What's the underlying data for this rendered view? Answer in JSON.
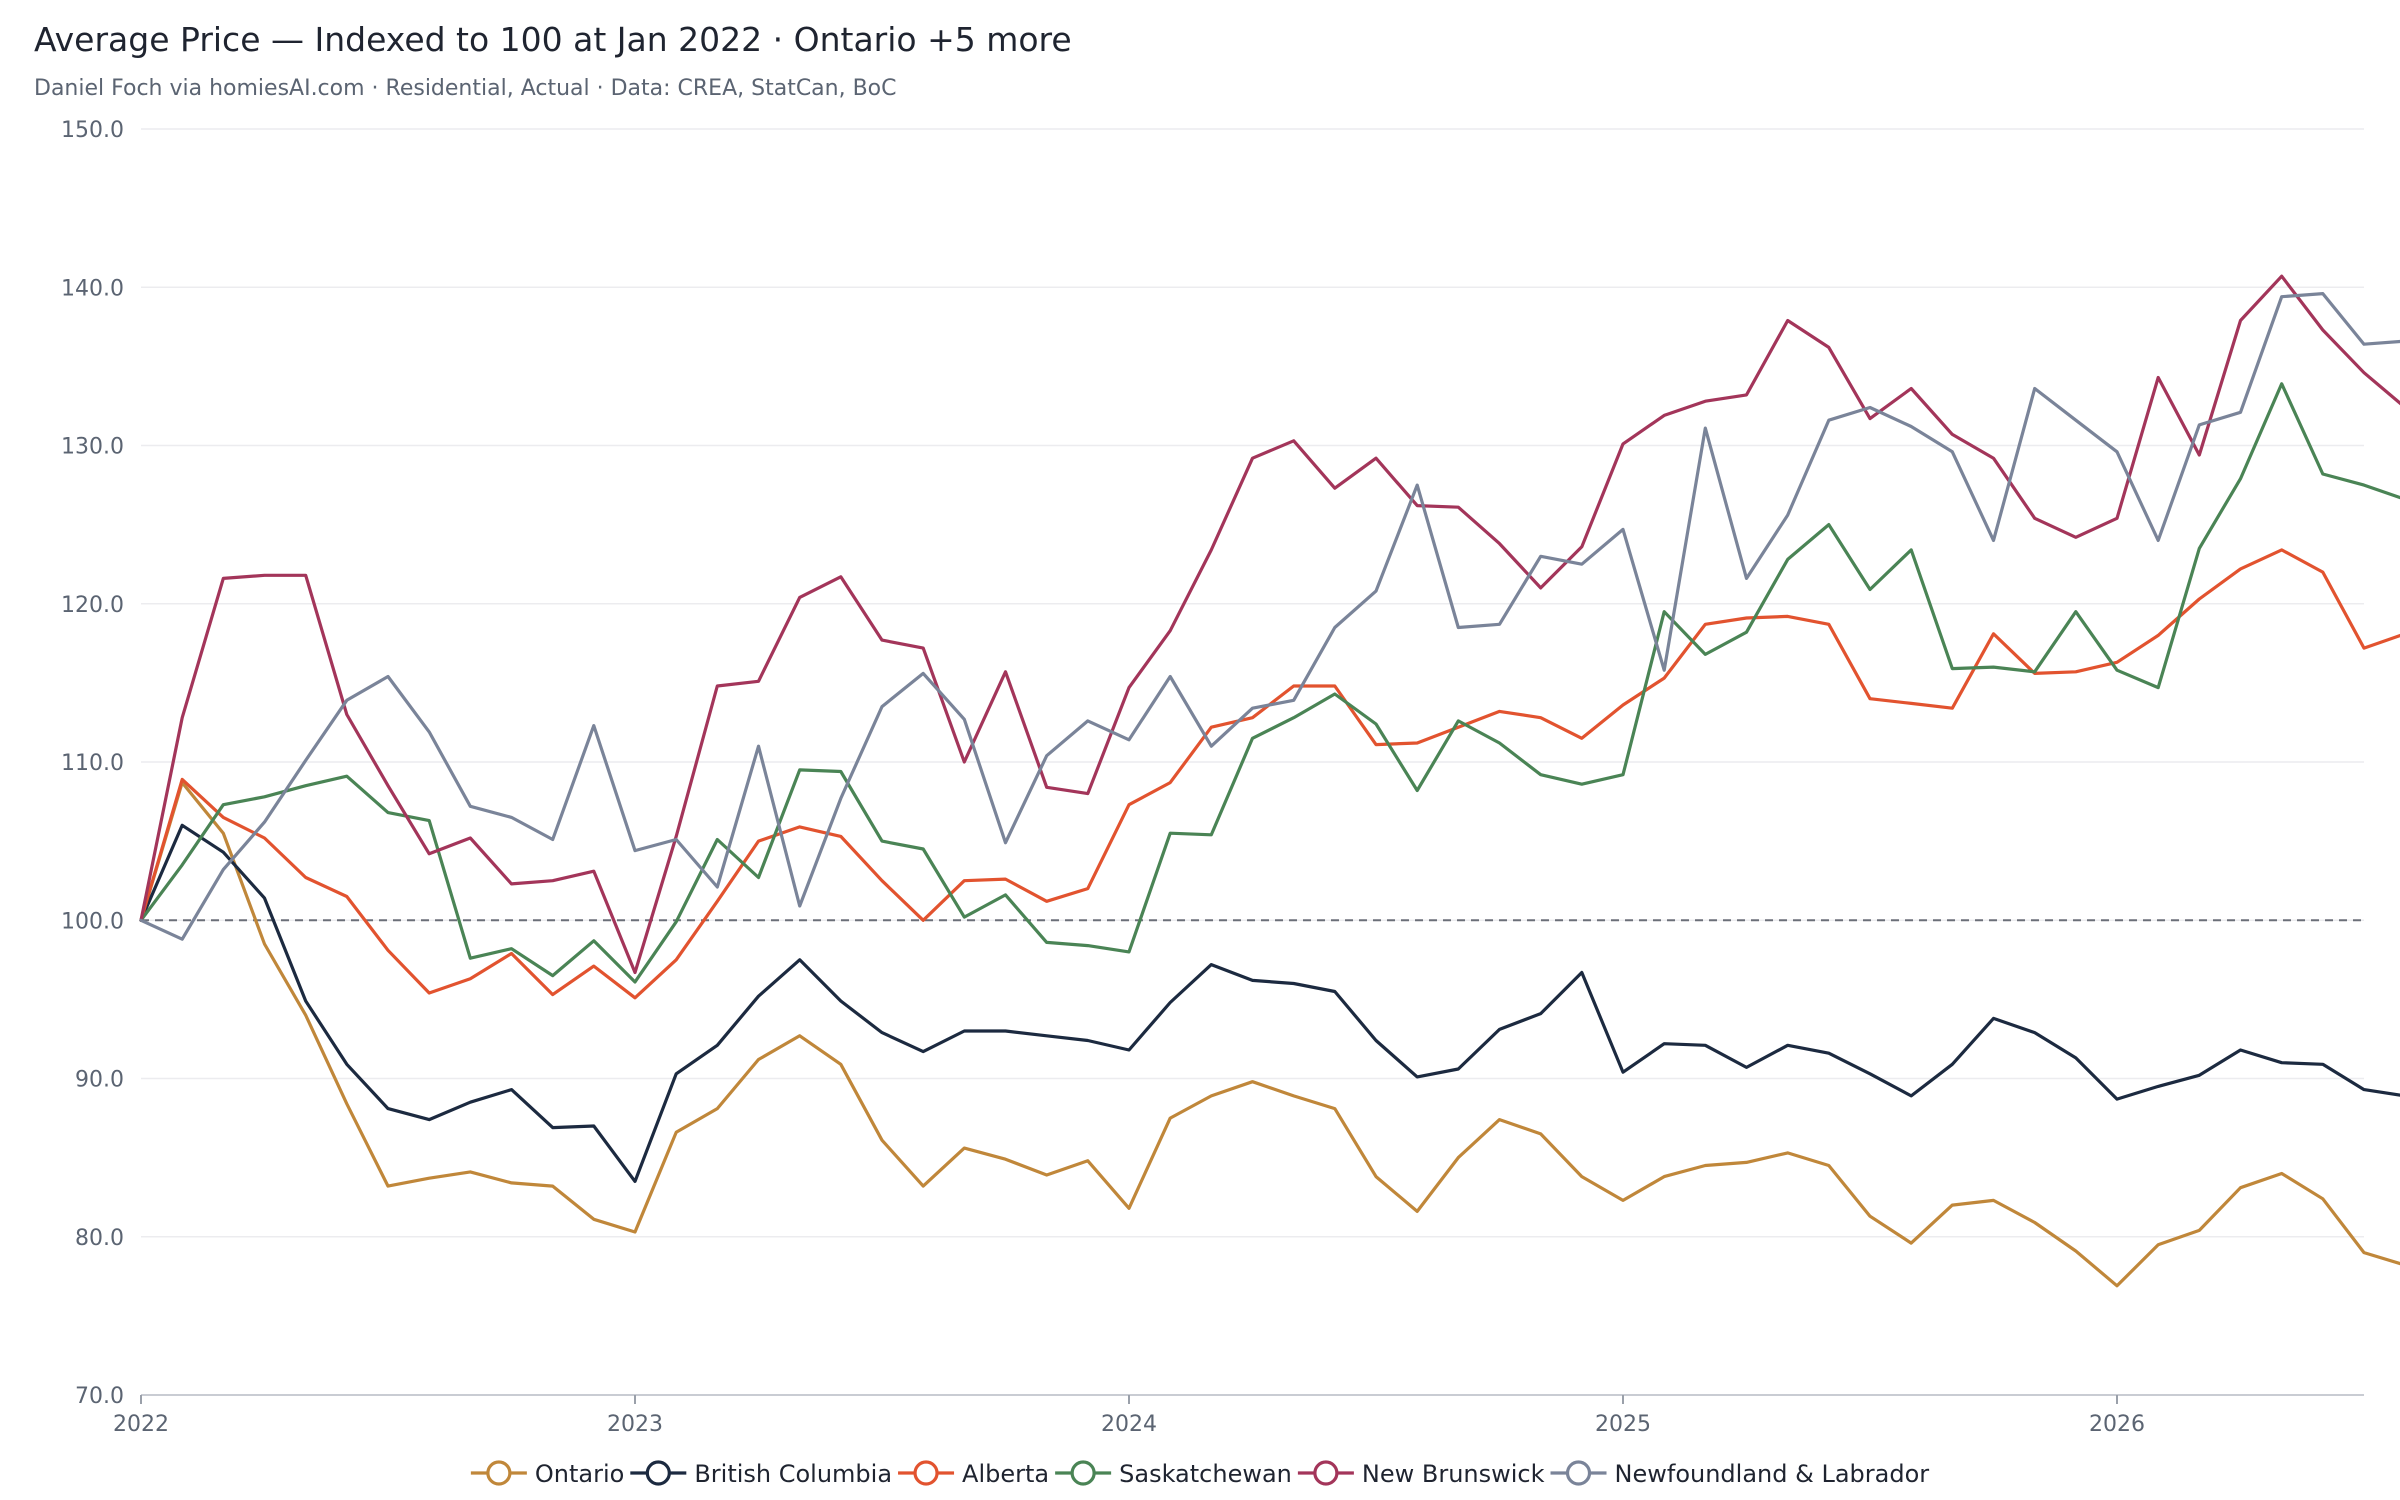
{
  "header": {
    "title": "Average Price — Indexed to 100 at Jan 2022 · Ontario +5 more",
    "subtitle": "Daniel Foch via homiesAI.com  ·  Residential, Actual · Data: CREA, StatCan, BoC"
  },
  "chart_data": {
    "type": "line",
    "title": "Average Price — Indexed to 100 at Jan 2022 · Ontario +5 more",
    "subtitle": "Daniel Foch via homiesAI.com  ·  Residential, Actual · Data: CREA, StatCan, BoC",
    "ylim": [
      70,
      150
    ],
    "yticks": [
      "150.0",
      "140.0",
      "130.0",
      "120.0",
      "110.0",
      "100.0",
      "90.0",
      "80.0",
      "70.0"
    ],
    "xticks": [
      "2022",
      "2023",
      "2024",
      "2025",
      "2026"
    ],
    "x_start": "2022-01",
    "x_end": "2026-07",
    "baseline": 100,
    "grid": true,
    "legend_position": "bottom",
    "series": [
      {
        "name": "Ontario",
        "color": "#c0873a",
        "values": [
          100.0,
          108.7,
          105.5,
          98.5,
          94.0,
          88.4,
          83.2,
          83.7,
          84.1,
          83.4,
          83.2,
          81.1,
          80.3,
          86.6,
          88.1,
          91.2,
          92.7,
          90.9,
          86.1,
          83.2,
          85.6,
          84.9,
          83.9,
          84.8,
          81.8,
          87.5,
          88.9,
          89.8,
          88.9,
          88.1,
          83.8,
          81.6,
          85.0,
          87.4,
          86.5,
          83.8,
          82.3,
          83.8,
          84.5,
          84.7,
          85.3,
          84.5,
          81.3,
          79.6,
          82.0,
          82.3,
          80.9,
          79.1,
          76.9,
          79.5,
          80.4,
          83.1,
          84.0,
          82.4,
          79.0,
          78.2
        ]
      },
      {
        "name": "British Columbia",
        "color": "#1c2a40",
        "values": [
          100.0,
          106.0,
          104.3,
          101.4,
          94.9,
          90.9,
          88.1,
          87.4,
          88.5,
          89.3,
          86.9,
          87.0,
          83.5,
          90.3,
          92.1,
          95.2,
          97.5,
          94.9,
          92.9,
          91.7,
          93.0,
          93.0,
          92.7,
          92.4,
          91.8,
          94.8,
          97.2,
          96.2,
          96.0,
          95.5,
          92.4,
          90.1,
          90.6,
          93.1,
          94.1,
          96.7,
          90.4,
          92.2,
          92.1,
          90.7,
          92.1,
          91.6,
          90.3,
          88.9,
          90.9,
          93.8,
          92.9,
          91.3,
          88.7,
          89.5,
          90.2,
          91.8,
          91.0,
          90.9,
          89.3,
          88.9
        ]
      },
      {
        "name": "Alberta",
        "color": "#e2532f",
        "values": [
          100.0,
          108.9,
          106.5,
          105.2,
          102.7,
          101.5,
          98.1,
          95.4,
          96.3,
          97.9,
          95.3,
          97.1,
          95.1,
          97.5,
          101.2,
          105.0,
          105.9,
          105.3,
          102.5,
          100.0,
          102.5,
          102.6,
          101.2,
          102.0,
          107.3,
          108.7,
          112.2,
          112.8,
          114.8,
          114.8,
          111.1,
          111.2,
          112.2,
          113.2,
          112.8,
          111.5,
          113.6,
          115.3,
          118.7,
          119.1,
          119.2,
          118.7,
          114.0,
          113.7,
          113.4,
          118.1,
          115.6,
          115.7,
          116.3,
          118.0,
          120.3,
          122.2,
          123.4,
          122.0,
          117.2,
          118.1
        ]
      },
      {
        "name": "Saskatchewan",
        "color": "#4a8455",
        "values": [
          100.0,
          103.5,
          107.3,
          107.8,
          108.5,
          109.1,
          106.8,
          106.3,
          97.6,
          98.2,
          96.5,
          98.7,
          96.1,
          99.9,
          105.1,
          102.7,
          109.5,
          109.4,
          105.0,
          104.5,
          100.2,
          101.6,
          98.6,
          98.4,
          98.0,
          105.5,
          105.4,
          111.5,
          112.8,
          114.3,
          112.4,
          108.2,
          112.6,
          111.2,
          109.2,
          108.6,
          109.2,
          119.5,
          116.8,
          118.2,
          122.8,
          125.0,
          120.9,
          123.4,
          115.9,
          116.0,
          115.7,
          119.5,
          115.8,
          114.7,
          123.5,
          127.9,
          133.9,
          128.2,
          127.5,
          126.6
        ]
      },
      {
        "name": "New Brunswick",
        "color": "#a3355a",
        "values": [
          100.0,
          112.8,
          121.6,
          121.8,
          121.8,
          113.0,
          108.5,
          104.2,
          105.2,
          102.3,
          102.5,
          103.1,
          96.7,
          105.3,
          114.8,
          115.1,
          120.4,
          121.7,
          117.7,
          117.2,
          110.0,
          115.7,
          108.4,
          108.0,
          114.7,
          118.3,
          123.4,
          129.2,
          130.3,
          127.3,
          129.2,
          126.2,
          126.1,
          123.8,
          121.0,
          123.6,
          130.1,
          131.9,
          132.8,
          133.2,
          137.9,
          136.2,
          131.7,
          133.6,
          130.7,
          129.2,
          125.4,
          124.2,
          125.4,
          134.3,
          129.4,
          137.9,
          140.7,
          137.3,
          134.6,
          132.4
        ]
      },
      {
        "name": "Newfoundland & Labrador",
        "color": "#7a8499",
        "values": [
          100.0,
          98.8,
          103.2,
          106.2,
          110.1,
          113.9,
          115.4,
          111.9,
          107.2,
          106.5,
          105.1,
          112.3,
          104.4,
          105.1,
          102.1,
          111.0,
          100.9,
          107.7,
          113.5,
          115.6,
          112.7,
          104.9,
          110.4,
          112.6,
          111.4,
          115.4,
          111.0,
          113.4,
          113.9,
          118.5,
          120.8,
          127.5,
          118.5,
          118.7,
          123.0,
          122.5,
          124.7,
          115.8,
          131.1,
          121.6,
          125.6,
          131.6,
          132.4,
          131.2,
          129.6,
          124.0,
          133.6,
          131.6,
          129.6,
          124.0,
          131.3,
          132.1,
          139.4,
          139.6,
          136.4,
          136.6
        ]
      }
    ]
  }
}
